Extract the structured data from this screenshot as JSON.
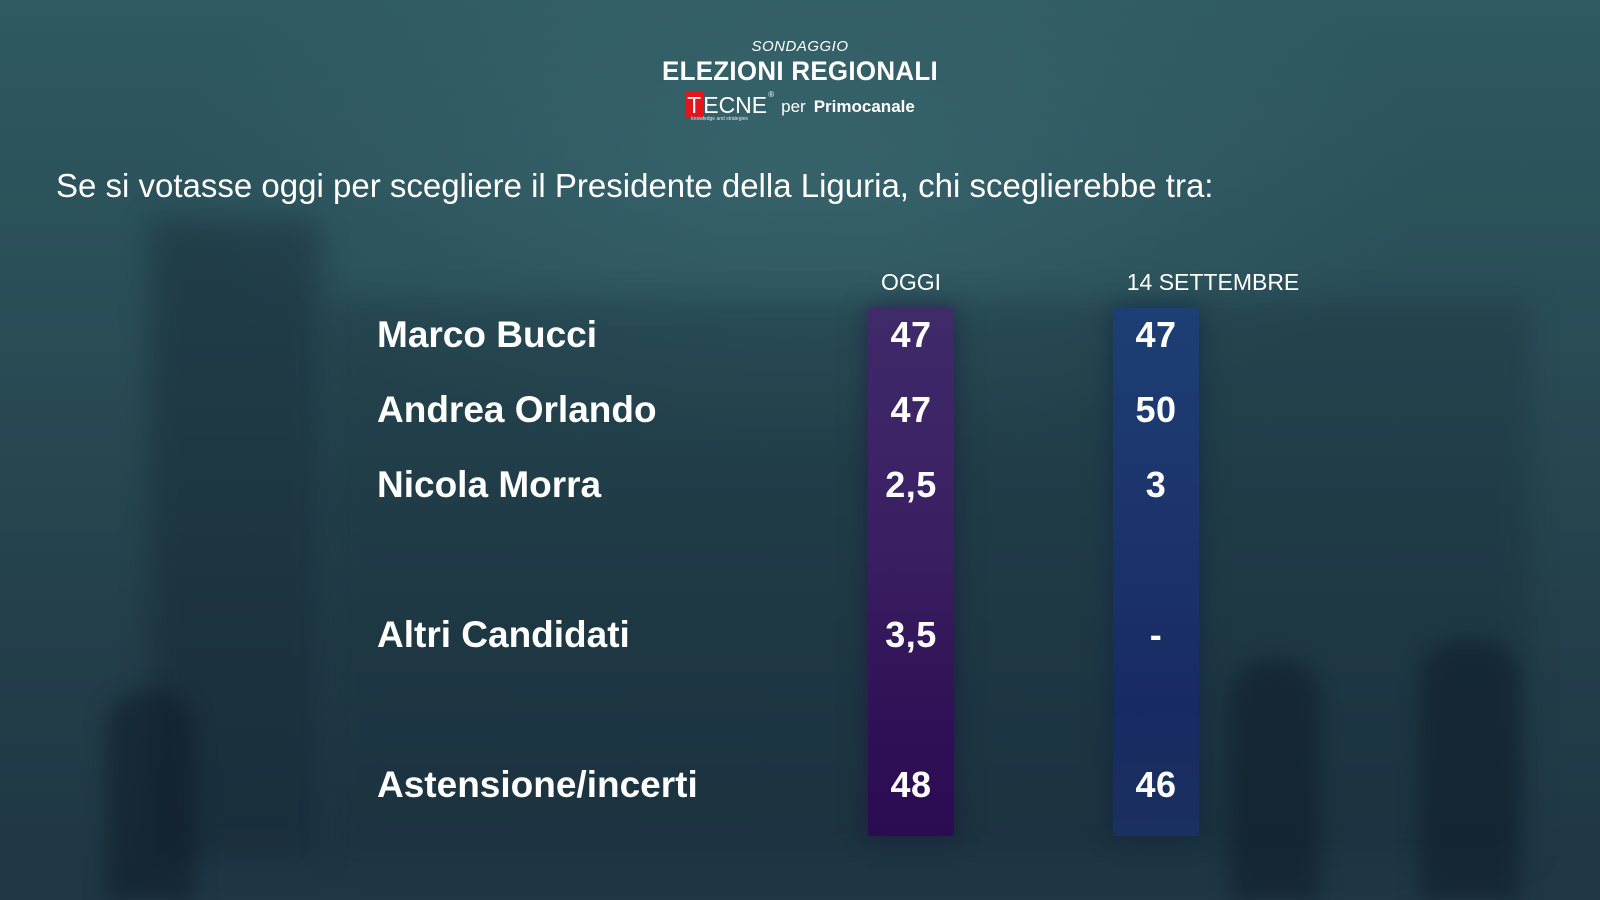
{
  "header": {
    "kicker": "SONDAGGIO",
    "headline": "ELEZIONI REGIONALI",
    "logo_t": "T",
    "logo_rest": "ECNE",
    "logo_tagline": "knowledge and strategies",
    "logo_reg": "®",
    "per": "per",
    "partner": "Primocanale"
  },
  "question": "Se si votasse oggi per scegliere il Presidente della Liguria, chi sceglierebbe tra:",
  "colors": {
    "oggi_bar": "#3a1f62",
    "sett_bar": "#1b336b",
    "text": "#ffffff",
    "logo_red": "#e3141b"
  },
  "chart_data": {
    "type": "table",
    "columns": [
      "OGGI",
      "14 SETTEMBRE"
    ],
    "rows": [
      {
        "label": "Marco Bucci",
        "oggi": "47",
        "sett": "47"
      },
      {
        "label": "Andrea Orlando",
        "oggi": "47",
        "sett": "50"
      },
      {
        "label": "Nicola Morra",
        "oggi": "2,5",
        "sett": "3"
      },
      {
        "label": "Altri Candidati",
        "oggi": "3,5",
        "sett": "-"
      },
      {
        "label": "Astensione/incerti",
        "oggi": "48",
        "sett": "46"
      }
    ]
  }
}
